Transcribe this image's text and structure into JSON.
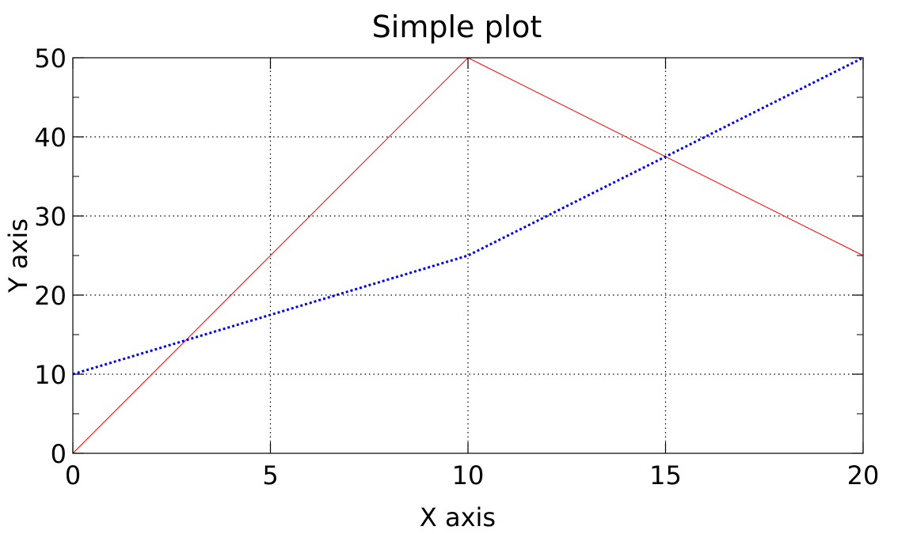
{
  "chart_data": {
    "type": "line",
    "title": "Simple plot",
    "xlabel": "X axis",
    "ylabel": "Y axis",
    "xlim": [
      0,
      20
    ],
    "ylim": [
      0,
      50
    ],
    "x_ticks": [
      0,
      5,
      10,
      15,
      20
    ],
    "y_ticks": [
      0,
      10,
      20,
      30,
      40,
      50
    ],
    "grid": true,
    "series": [
      {
        "x": [
          0,
          10,
          20
        ],
        "y": [
          0,
          50,
          25
        ],
        "color": "#ff0000",
        "style": "solid"
      },
      {
        "x": [
          0,
          5,
          10,
          15,
          20
        ],
        "y": [
          10,
          17.5,
          25,
          37.5,
          50
        ],
        "color": "#0000ee",
        "style": "dotted"
      }
    ]
  }
}
